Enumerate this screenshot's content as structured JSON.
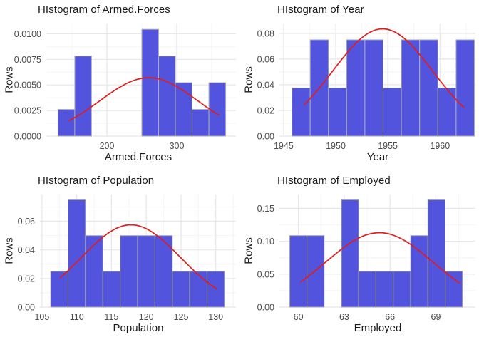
{
  "style": {
    "background": "#ffffff",
    "bar_fill": "#5254DE",
    "bar_stroke": "#AEAEAE",
    "curve_color": "#E01D1D",
    "grid_major": "#E7E7E7",
    "grid_minor": "#F4F4F4",
    "tick_text_color": "#4D4D4D",
    "title_text_color": "#1A1A1A"
  },
  "chart_data": [
    {
      "type": "bar",
      "subtype": "histogram-with-density-curve",
      "title": "HIstogram of Armed.Forces",
      "xlabel": "Armed.Forces",
      "ylabel": "Rows",
      "xlim": [
        113.3,
        384.7
      ],
      "ylim": [
        0,
        0.011
      ],
      "x_ticks": [
        200,
        300
      ],
      "x_tick_labels": [
        "200",
        "300"
      ],
      "x_minor": [
        150,
        250,
        350
      ],
      "y_ticks": [
        0,
        0.0025,
        0.005,
        0.0075,
        0.01
      ],
      "y_tick_labels": [
        "0.0000",
        "0.0025",
        "0.0050",
        "0.0075",
        "0.0100"
      ],
      "y_minor": [
        0.00125,
        0.00375,
        0.00625,
        0.00875
      ],
      "bars": [
        [
          130,
          154,
          0.00261
        ],
        [
          154,
          178,
          0.00782
        ],
        [
          250,
          274,
          0.01043
        ],
        [
          274,
          298,
          0.00782
        ],
        [
          298,
          322,
          0.00522
        ],
        [
          322,
          346,
          0.00261
        ],
        [
          346,
          370,
          0.00522
        ]
      ],
      "curve": {
        "shape": "normal",
        "mean": 260,
        "sd": 70,
        "peak": 0.0057,
        "range": [
          146,
          360
        ]
      }
    },
    {
      "type": "bar",
      "subtype": "histogram-with-density-curve",
      "title": "HIstogram of Year",
      "xlabel": "Year",
      "ylabel": "Rows",
      "xlim": [
        1944.6,
        1963.4
      ],
      "ylim": [
        0,
        0.0877
      ],
      "x_ticks": [
        1945,
        1950,
        1955,
        1960
      ],
      "x_tick_labels": [
        "1945",
        "1950",
        "1955",
        "1960"
      ],
      "x_minor": [
        1947.5,
        1952.5,
        1957.5,
        1962.5
      ],
      "y_ticks": [
        0,
        0.02,
        0.04,
        0.06,
        0.08
      ],
      "y_tick_labels": [
        "0.00",
        "0.02",
        "0.04",
        "0.06",
        "0.08"
      ],
      "y_minor": [
        0.01,
        0.03,
        0.05,
        0.07
      ],
      "bars": [
        [
          1945.8,
          1947.55,
          0.0375
        ],
        [
          1947.55,
          1949.3,
          0.075
        ],
        [
          1949.3,
          1951.05,
          0.0375
        ],
        [
          1951.05,
          1952.8,
          0.075
        ],
        [
          1952.8,
          1954.55,
          0.075
        ],
        [
          1954.55,
          1956.3,
          0.0375
        ],
        [
          1956.3,
          1958.05,
          0.075
        ],
        [
          1958.05,
          1959.8,
          0.075
        ],
        [
          1959.8,
          1961.55,
          0.0375
        ],
        [
          1961.55,
          1963.3,
          0.075
        ]
      ],
      "curve": {
        "shape": "normal",
        "mean": 1954.5,
        "sd": 4.8,
        "peak": 0.0835,
        "range": [
          1947,
          1962.3
        ]
      }
    },
    {
      "type": "bar",
      "subtype": "histogram-with-density-curve",
      "title": "HIstogram of Population",
      "xlabel": "Population",
      "ylabel": "Rows",
      "xlim": [
        104.7,
        132.9
      ],
      "ylim": [
        0,
        0.0787
      ],
      "x_ticks": [
        105,
        110,
        115,
        120,
        125,
        130
      ],
      "x_tick_labels": [
        "105",
        "110",
        "115",
        "120",
        "125",
        "130"
      ],
      "x_minor": [
        107.5,
        112.5,
        117.5,
        122.5,
        127.5,
        132.5
      ],
      "y_ticks": [
        0,
        0.02,
        0.04,
        0.06
      ],
      "y_tick_labels": [
        "0.00",
        "0.02",
        "0.04",
        "0.06"
      ],
      "y_minor": [
        0.01,
        0.03,
        0.05,
        0.07
      ],
      "bars": [
        [
          106.25,
          108.75,
          0.025
        ],
        [
          108.75,
          111.25,
          0.075
        ],
        [
          111.25,
          113.75,
          0.05
        ],
        [
          113.75,
          116.25,
          0.025
        ],
        [
          116.25,
          118.75,
          0.05
        ],
        [
          118.75,
          121.25,
          0.05
        ],
        [
          121.25,
          123.75,
          0.05
        ],
        [
          123.75,
          126.25,
          0.025
        ],
        [
          126.25,
          128.75,
          0.025
        ],
        [
          128.75,
          131.25,
          0.025
        ]
      ],
      "curve": {
        "shape": "normal",
        "mean": 117.8,
        "sd": 7.1,
        "peak": 0.0575,
        "range": [
          107.6,
          130.1
        ]
      }
    },
    {
      "type": "bar",
      "subtype": "histogram-with-density-curve",
      "title": "HIstogram of Employed",
      "xlabel": "Employed",
      "ylabel": "Rows",
      "xlim": [
        58.76,
        71.59
      ],
      "ylim": [
        0,
        0.171
      ],
      "x_ticks": [
        60,
        63,
        66,
        69
      ],
      "x_tick_labels": [
        "60",
        "63",
        "66",
        "69"
      ],
      "x_minor": [
        61.5,
        64.5,
        67.5,
        70.5
      ],
      "y_ticks": [
        0,
        0.05,
        0.1,
        0.15
      ],
      "y_tick_labels": [
        "0.00",
        "0.05",
        "0.10",
        "0.15"
      ],
      "y_minor": [
        0.025,
        0.075,
        0.125
      ],
      "bars": [
        [
          59.43,
          60.56,
          0.1087
        ],
        [
          60.56,
          61.69,
          0.1087
        ],
        [
          62.82,
          63.95,
          0.163
        ],
        [
          63.95,
          65.08,
          0.0543
        ],
        [
          65.08,
          66.21,
          0.0543
        ],
        [
          66.21,
          67.35,
          0.0543
        ],
        [
          67.35,
          68.48,
          0.1087
        ],
        [
          68.48,
          69.61,
          0.163
        ],
        [
          69.61,
          70.74,
          0.0543
        ]
      ],
      "curve": {
        "shape": "normal",
        "mean": 65.3,
        "sd": 3.5,
        "peak": 0.113,
        "range": [
          60.17,
          70.55
        ]
      }
    }
  ]
}
